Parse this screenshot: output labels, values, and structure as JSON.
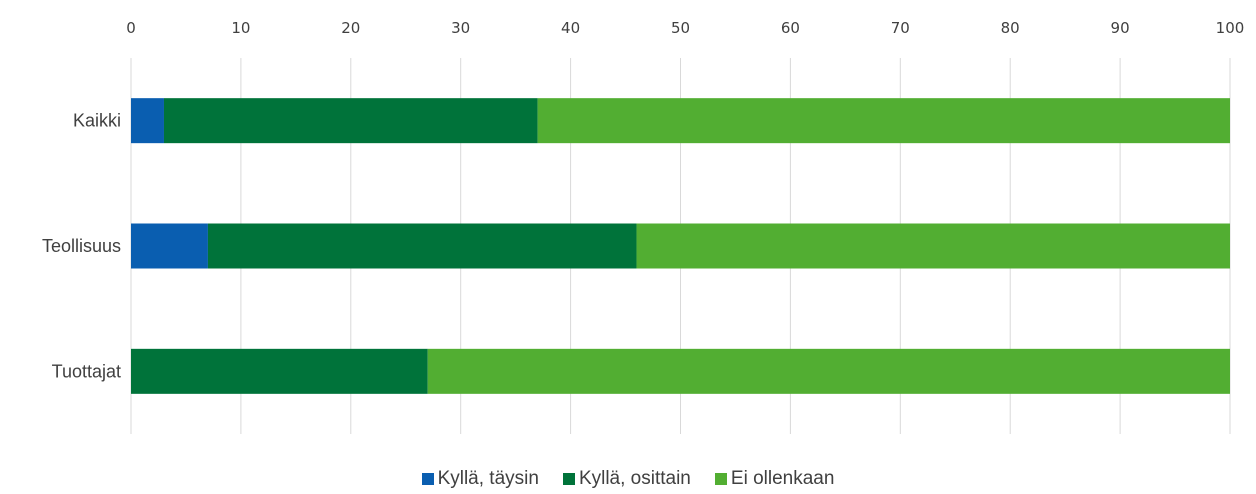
{
  "chart_data": {
    "type": "bar",
    "orientation": "horizontal",
    "stacked": true,
    "categories": [
      "Kaikki",
      "Teollisuus",
      "Tuottajat"
    ],
    "series": [
      {
        "name": "Kyllä, täysin",
        "values": [
          3,
          7,
          0
        ],
        "color": "#0a5eb0"
      },
      {
        "name": "Kyllä, osittain",
        "values": [
          34,
          39,
          27
        ],
        "color": "#00733a"
      },
      {
        "name": "Ei ollenkaan",
        "values": [
          63,
          54,
          73
        ],
        "color": "#52ae32"
      }
    ],
    "xlim": [
      0,
      100
    ],
    "xticks": [
      "0",
      "10",
      "20",
      "30",
      "40",
      "50",
      "60",
      "70",
      "80",
      "90",
      "100"
    ],
    "x_axis_position": "top",
    "grid": true,
    "legend_position": "bottom"
  }
}
